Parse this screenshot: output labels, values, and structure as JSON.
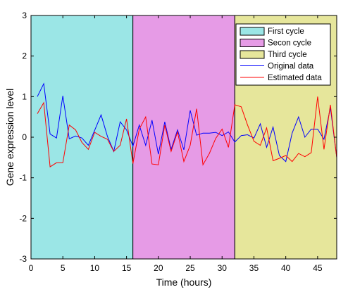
{
  "chart_data": {
    "type": "line",
    "xlabel": "Time (hours)",
    "ylabel": "Gene expression level",
    "xlim": [
      0,
      48
    ],
    "ylim": [
      -3,
      3
    ],
    "xticks": [
      0,
      5,
      10,
      15,
      20,
      25,
      30,
      35,
      40,
      45
    ],
    "yticks": [
      -3,
      -2,
      -1,
      0,
      1,
      2,
      3
    ],
    "grid": false,
    "legend_position": "top-right",
    "regions": [
      {
        "name": "First cycle",
        "x_start": 0,
        "x_end": 16,
        "color": "#9be6e6"
      },
      {
        "name": "Secon cycle",
        "x_start": 16,
        "x_end": 32,
        "color": "#e69be6"
      },
      {
        "name": "Third cycle",
        "x_start": 32,
        "x_end": 48,
        "color": "#e6e69b"
      }
    ],
    "x": [
      1,
      2,
      3,
      4,
      5,
      6,
      7,
      8,
      9,
      10,
      11,
      12,
      13,
      14,
      15,
      16,
      17,
      18,
      19,
      20,
      21,
      22,
      23,
      24,
      25,
      26,
      27,
      28,
      29,
      30,
      31,
      32,
      33,
      34,
      35,
      36,
      37,
      38,
      39,
      40,
      41,
      42,
      43,
      44,
      45,
      46,
      47,
      48
    ],
    "series": [
      {
        "name": "Original data",
        "color": "#0000ff",
        "values": [
          1.0,
          1.32,
          0.08,
          -0.02,
          1.02,
          -0.04,
          0.03,
          -0.02,
          -0.2,
          0.17,
          0.55,
          0.02,
          -0.35,
          0.38,
          0.18,
          -0.22,
          0.3,
          -0.2,
          0.42,
          -0.42,
          0.38,
          -0.3,
          0.18,
          -0.31,
          0.66,
          0.05,
          0.1,
          0.1,
          0.12,
          0.04,
          0.13,
          -0.12,
          0.04,
          0.06,
          -0.02,
          0.33,
          -0.25,
          0.25,
          -0.45,
          -0.6,
          0.1,
          0.5,
          0.0,
          0.2,
          0.2,
          -0.05,
          0.73,
          -0.5
        ]
      },
      {
        "name": "Estimated data",
        "color": "#ff0000",
        "values": [
          0.58,
          0.85,
          -0.73,
          -0.63,
          -0.63,
          0.3,
          0.18,
          -0.13,
          -0.3,
          0.12,
          0.02,
          -0.05,
          -0.35,
          -0.2,
          0.45,
          -0.65,
          0.2,
          0.5,
          -0.66,
          -0.68,
          0.3,
          -0.35,
          0.13,
          -0.6,
          -0.2,
          0.7,
          -0.68,
          -0.4,
          -0.03,
          0.2,
          -0.25,
          0.8,
          0.75,
          0.3,
          -0.1,
          -0.2,
          0.23,
          -0.58,
          -0.52,
          -0.45,
          -0.6,
          -0.4,
          -0.48,
          -0.38,
          1.0,
          -0.3,
          0.8,
          -0.5
        ]
      }
    ]
  }
}
